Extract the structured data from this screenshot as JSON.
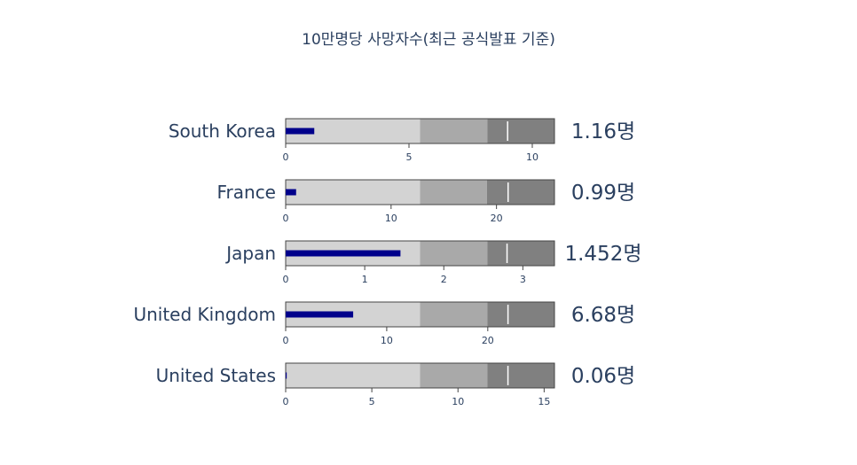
{
  "title": "10만명당 사망자수(최근 공식발표 기준)",
  "value_suffix": "명",
  "colors": {
    "range_1": "#d3d3d3",
    "range_2": "#a9a9a9",
    "range_3": "#808080",
    "bar": "#00008b",
    "threshold": "#ffffff",
    "text": "#2a3f5f",
    "border": "#444444"
  },
  "chart_data": {
    "type": "bullet",
    "title": "10만명당 사망자수(최근 공식발표 기준)",
    "grid": false,
    "series": [
      {
        "name": "South Korea",
        "value": 1.16,
        "value_label": "1.16명",
        "axis_max": 10.9,
        "steps": [
          5.45,
          8.175
        ],
        "threshold": 9.0,
        "ticks": [
          "0",
          "5",
          "10"
        ],
        "tick_values": [
          0,
          5,
          10
        ]
      },
      {
        "name": "France",
        "value": 0.99,
        "value_label": "0.99명",
        "axis_max": 25.5,
        "steps": [
          12.75,
          19.1
        ],
        "threshold": 21.1,
        "ticks": [
          "0",
          "10",
          "20"
        ],
        "tick_values": [
          0,
          10,
          20
        ]
      },
      {
        "name": "Japan",
        "value": 1.452,
        "value_label": "1.452명",
        "axis_max": 3.4,
        "steps": [
          1.7,
          2.55
        ],
        "threshold": 2.8,
        "ticks": [
          "0",
          "1",
          "2",
          "3"
        ],
        "tick_values": [
          0,
          1,
          2,
          3
        ]
      },
      {
        "name": "United Kingdom",
        "value": 6.68,
        "value_label": "6.68명",
        "axis_max": 26.6,
        "steps": [
          13.3,
          19.95
        ],
        "threshold": 22.0,
        "ticks": [
          "0",
          "10",
          "20"
        ],
        "tick_values": [
          0,
          10,
          20
        ]
      },
      {
        "name": "United States",
        "value": 0.06,
        "value_label": "0.06명",
        "axis_max": 15.6,
        "steps": [
          7.8,
          11.7
        ],
        "threshold": 12.9,
        "ticks": [
          "0",
          "5",
          "10",
          "15"
        ],
        "tick_values": [
          0,
          5,
          10,
          15
        ]
      }
    ]
  }
}
